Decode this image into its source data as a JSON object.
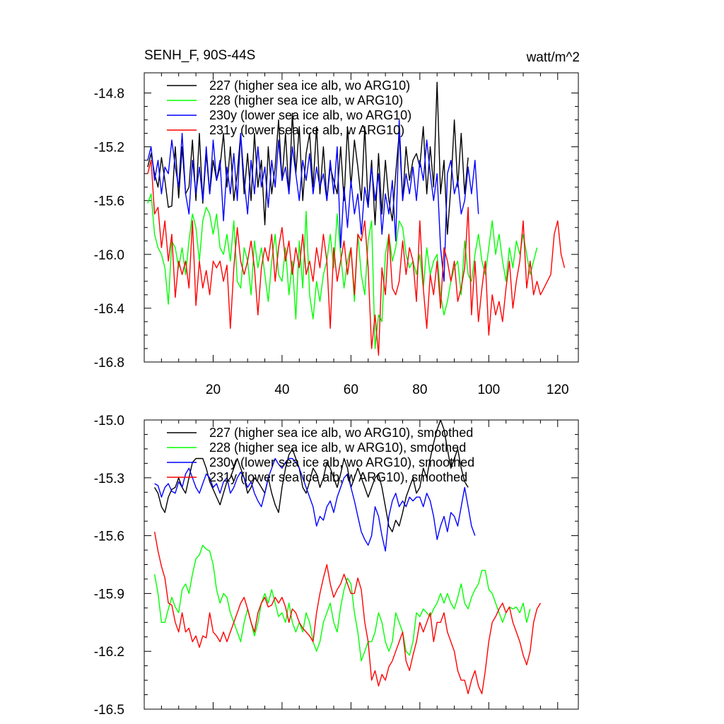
{
  "chart_data": [
    {
      "type": "line",
      "title": "SENH_F, 90S-44S",
      "units": "watt/m^2",
      "ylim": [
        -16.8,
        -14.65
      ],
      "xlim": [
        0,
        126
      ],
      "yticks": [
        "-14.8",
        "-15.2",
        "-15.6",
        "-16.0",
        "-16.4",
        "-16.8"
      ],
      "xticks": [
        "20",
        "40",
        "60",
        "80",
        "100",
        "120"
      ],
      "legend_position": "top-left",
      "series": [
        {
          "name": "227 (higher sea ice alb, wo ARG10)",
          "color": "#000000",
          "x_start": 1,
          "values": [
            -15.35,
            -15.25,
            -15.4,
            -15.5,
            -15.28,
            -15.45,
            -15.65,
            -15.64,
            -15.2,
            -15.58,
            -15.2,
            -15.55,
            -15.5,
            -15.15,
            -15.6,
            -15.1,
            -15.62,
            -15.25,
            -15.55,
            -15.3,
            -15.45,
            -15.35,
            -15.1,
            -15.5,
            -15.2,
            -15.6,
            -15.4,
            -15.1,
            -15.55,
            -15.25,
            -15.6,
            -15.1,
            -15.5,
            -15.3,
            -15.78,
            -15.2,
            -15.55,
            -15.35,
            -15.0,
            -15.45,
            -15.1,
            -15.55,
            -14.95,
            -15.4,
            -15.05,
            -15.6,
            -15.25,
            -15.1,
            -15.5,
            -15.05,
            -15.55,
            -15.2,
            -15.6,
            -15.35,
            -15.45,
            -15.55,
            -15.2,
            -15.6,
            -15.05,
            -15.5,
            -15.15,
            -15.35,
            -15.6,
            -15.05,
            -15.65,
            -15.3,
            -15.78,
            -15.25,
            -15.7,
            -15.3,
            -15.6,
            -15.75,
            -15.4,
            -15.1,
            -15.6,
            -15.2,
            -15.45,
            -15.3,
            -15.25,
            -15.35,
            -15.05,
            -15.55,
            -15.2,
            -15.5,
            -14.72,
            -15.55,
            -15.3,
            -15.85,
            -15.5,
            -15.0,
            -15.5,
            -15.1,
            -15.55,
            -15.28
          ]
        },
        {
          "name": "228 (higher sea ice alb, w ARG10)",
          "color": "#00ff00",
          "x_start": 1,
          "values": [
            -15.62,
            -15.55,
            -15.85,
            -15.95,
            -16.0,
            -16.1,
            -16.37,
            -15.9,
            -15.95,
            -16.1,
            -15.95,
            -16.15,
            -15.9,
            -15.7,
            -15.8,
            -16.05,
            -15.75,
            -15.65,
            -15.7,
            -15.85,
            -15.7,
            -15.95,
            -16.0,
            -15.85,
            -16.05,
            -15.75,
            -16.2,
            -16.25,
            -15.95,
            -16.05,
            -16.3,
            -15.9,
            -16.1,
            -15.95,
            -16.15,
            -16.35,
            -16.05,
            -15.85,
            -16.15,
            -16.2,
            -15.95,
            -16.3,
            -16.05,
            -16.48,
            -15.9,
            -16.25,
            -15.68,
            -16.3,
            -16.48,
            -16.2,
            -16.35,
            -16.15,
            -16.05,
            -15.85,
            -16.1,
            -15.7,
            -16.0,
            -16.25,
            -16.05,
            -15.95,
            -16.35,
            -15.85,
            -16.15,
            -16.3,
            -15.9,
            -15.75,
            -16.7,
            -16.45,
            -16.5,
            -16.0,
            -15.85,
            -16.05,
            -15.95,
            -15.75,
            -15.8,
            -16.0,
            -16.1,
            -16.05,
            -16.15,
            -16.0,
            -16.25,
            -15.95,
            -16.15,
            -16.05,
            -16.0,
            -16.3,
            -16.45,
            -16.35,
            -16.2,
            -16.1,
            -16.05,
            -16.3,
            -15.9,
            -16.15,
            -16.2,
            -16.0,
            -15.85,
            -16.05,
            -16.15,
            -15.95,
            -15.75,
            -16.0,
            -15.85,
            -16.05,
            -16.2,
            -15.95,
            -16.1,
            -15.9,
            -16.0,
            -15.85,
            -16.0,
            -16.15,
            -16.05,
            -15.95
          ]
        },
        {
          "name": "230y (lower sea ice alb, wo ARG10)",
          "color": "#0000ff",
          "x_start": 1,
          "values": [
            -15.3,
            -15.2,
            -15.45,
            -15.3,
            -15.55,
            -15.35,
            -15.4,
            -15.15,
            -15.35,
            -15.5,
            -15.1,
            -15.55,
            -15.7,
            -15.3,
            -15.55,
            -15.35,
            -15.6,
            -15.2,
            -15.55,
            -15.15,
            -15.45,
            -15.3,
            -15.75,
            -15.35,
            -15.55,
            -15.25,
            -15.6,
            -15.1,
            -15.45,
            -15.7,
            -15.3,
            -15.55,
            -15.2,
            -15.5,
            -15.35,
            -15.65,
            -15.3,
            -15.5,
            -15.15,
            -15.45,
            -15.35,
            -15.55,
            -15.2,
            -15.4,
            -15.6,
            -15.3,
            -15.45,
            -15.25,
            -15.55,
            -15.35,
            -15.5,
            -15.4,
            -15.6,
            -15.3,
            -15.55,
            -15.2,
            -15.95,
            -15.5,
            -15.8,
            -15.45,
            -15.7,
            -15.55,
            -15.85,
            -15.5,
            -15.65,
            -15.35,
            -15.6,
            -15.4,
            -15.85,
            -15.55,
            -15.7,
            -15.45,
            -15.9,
            -15.0,
            -15.6,
            -15.4,
            -15.55,
            -15.35,
            -15.6,
            -15.3,
            -15.45,
            -15.15,
            -15.4,
            -15.6,
            -15.4,
            -15.95,
            -16.2,
            -15.4,
            -15.3,
            -15.55,
            -15.45,
            -15.7,
            -15.6,
            -15.35,
            -15.55,
            -15.3,
            -15.7
          ]
        },
        {
          "name": "231y (lower sea ice alb, w ARG10)",
          "color": "#ff0000",
          "x_start": 1,
          "values": [
            -15.4,
            -15.3,
            -15.7,
            -15.65,
            -15.95,
            -15.75,
            -16.05,
            -15.85,
            -16.32,
            -16.05,
            -16.15,
            -16.05,
            -16.25,
            -15.75,
            -16.38,
            -16.05,
            -16.25,
            -16.12,
            -16.3,
            -16.05,
            -16.1,
            -16.05,
            -16.2,
            -16.08,
            -16.55,
            -16.1,
            -15.8,
            -16.05,
            -16.15,
            -16.05,
            -15.9,
            -16.1,
            -16.45,
            -16.1,
            -15.95,
            -16.05,
            -15.85,
            -16.2,
            -15.95,
            -15.8,
            -16.05,
            -15.9,
            -16.15,
            -15.95,
            -16.1,
            -15.85,
            -16.15,
            -16.05,
            -16.2,
            -15.95,
            -16.1,
            -15.85,
            -16.05,
            -16.55,
            -15.95,
            -16.2,
            -16.05,
            -15.9,
            -16.15,
            -15.95,
            -16.3,
            -15.85,
            -15.9,
            -15.75,
            -16.1,
            -16.7,
            -16.45,
            -16.75,
            -16.1,
            -16.3,
            -15.85,
            -16.25,
            -16.3,
            -16.2,
            -15.9,
            -16.15,
            -15.95,
            -16.05,
            -16.35,
            -15.75,
            -16.25,
            -16.55,
            -16.15,
            -16.3,
            -16.05,
            -16.4,
            -15.95,
            -16.05,
            -16.2,
            -16.05,
            -16.35,
            -16.25,
            -16.1,
            -15.65,
            -16.45,
            -16.05,
            -16.5,
            -16.25,
            -16.05,
            -16.6,
            -16.3,
            -16.45,
            -16.35,
            -16.5,
            -16.25,
            -16.05,
            -16.4,
            -16.2,
            -16.05,
            -15.75,
            -16.25,
            -16.05,
            -16.3,
            -16.2,
            -16.3,
            -16.25,
            -16.2,
            -16.15,
            -15.85,
            -15.75,
            -16.0,
            -16.1
          ]
        }
      ]
    },
    {
      "type": "line",
      "title": "",
      "units": "",
      "ylim": [
        -16.5,
        -15.0
      ],
      "xlim": [
        0,
        126
      ],
      "yticks": [
        "-15.0",
        "-15.3",
        "-15.6",
        "-15.9",
        "-16.2",
        "-16.5"
      ],
      "xticks": [],
      "legend_position": "top-left",
      "series": [
        {
          "name": "227 (higher sea ice alb, wo ARG10), smoothed",
          "color": "#000000",
          "x_start": 3,
          "values": [
            -15.35,
            -15.38,
            -15.45,
            -15.48,
            -15.4,
            -15.36,
            -15.35,
            -15.3,
            -15.35,
            -15.38,
            -15.3,
            -15.22,
            -15.2,
            -15.2,
            -15.2,
            -15.25,
            -15.32,
            -15.36,
            -15.4,
            -15.44,
            -15.38,
            -15.32,
            -15.3,
            -15.25,
            -15.2,
            -15.25,
            -15.3,
            -15.38,
            -15.35,
            -15.3,
            -15.32,
            -15.35,
            -15.38,
            -15.3,
            -15.38,
            -15.44,
            -15.48,
            -15.35,
            -15.25,
            -15.18,
            -15.15,
            -15.2,
            -15.25,
            -15.35,
            -15.38,
            -15.32,
            -15.25,
            -15.28,
            -15.35,
            -15.3,
            -15.22,
            -15.25,
            -15.3,
            -15.35,
            -15.28,
            -15.2,
            -15.25,
            -15.35,
            -15.3,
            -15.25,
            -15.3,
            -15.35,
            -15.4,
            -15.35,
            -15.3,
            -15.28,
            -15.35,
            -15.45,
            -15.55,
            -15.58,
            -15.52,
            -15.55,
            -15.48,
            -15.4,
            -15.35,
            -15.3,
            -15.38,
            -15.35,
            -15.25,
            -15.3,
            -15.2,
            -15.12,
            -15.05,
            -15.0,
            -15.05,
            -15.15,
            -15.25,
            -15.2,
            -15.15,
            -15.25,
            -15.32,
            -15.35
          ]
        },
        {
          "name": "228 (higher sea ice alb, w ARG10), smoothed",
          "color": "#00ff00",
          "x_start": 3,
          "values": [
            -15.8,
            -15.9,
            -16.05,
            -16.05,
            -15.98,
            -15.92,
            -15.97,
            -16.0,
            -15.88,
            -15.85,
            -15.9,
            -15.8,
            -15.72,
            -15.7,
            -15.65,
            -15.67,
            -15.68,
            -15.75,
            -15.88,
            -15.95,
            -15.9,
            -15.92,
            -16.0,
            -16.05,
            -16.1,
            -16.15,
            -16.05,
            -15.98,
            -16.05,
            -16.12,
            -16.05,
            -15.95,
            -15.9,
            -15.95,
            -15.88,
            -15.95,
            -16.02,
            -16.0,
            -16.05,
            -15.95,
            -16.05,
            -16.1,
            -16.05,
            -16.1,
            -16.0,
            -16.05,
            -16.15,
            -16.2,
            -16.15,
            -16.05,
            -16.0,
            -15.95,
            -16.05,
            -16.1,
            -15.97,
            -15.88,
            -15.82,
            -15.85,
            -16.0,
            -16.1,
            -16.25,
            -16.2,
            -16.15,
            -16.15,
            -16.1,
            -16.0,
            -16.05,
            -16.15,
            -16.2,
            -16.15,
            -16.0,
            -16.05,
            -16.1,
            -16.2,
            -16.22,
            -16.15,
            -16.0,
            -16.02,
            -15.98,
            -16.0,
            -16.02,
            -15.98,
            -15.95,
            -15.9,
            -15.95,
            -15.9,
            -15.95,
            -15.98,
            -15.92,
            -15.85,
            -15.95,
            -15.98,
            -15.92,
            -15.88,
            -15.85,
            -15.78,
            -15.78,
            -15.88,
            -15.9,
            -15.95,
            -16.0,
            -16.05,
            -16.0,
            -15.97,
            -15.98,
            -15.97,
            -16.0,
            -15.95,
            -16.05,
            -15.98
          ]
        },
        {
          "name": "230y (lower sea ice alb, wo ARG10), smoothed",
          "color": "#0000ff",
          "x_start": 3,
          "values": [
            -15.33,
            -15.34,
            -15.4,
            -15.35,
            -15.33,
            -15.37,
            -15.38,
            -15.32,
            -15.35,
            -15.28,
            -15.25,
            -15.3,
            -15.35,
            -15.38,
            -15.33,
            -15.28,
            -15.3,
            -15.35,
            -15.33,
            -15.38,
            -15.32,
            -15.3,
            -15.38,
            -15.35,
            -15.3,
            -15.27,
            -15.3,
            -15.35,
            -15.32,
            -15.38,
            -15.42,
            -15.45,
            -15.38,
            -15.3,
            -15.25,
            -15.2,
            -15.23,
            -15.25,
            -15.22,
            -15.2,
            -15.2,
            -15.22,
            -15.25,
            -15.3,
            -15.35,
            -15.4,
            -15.45,
            -15.55,
            -15.5,
            -15.52,
            -15.45,
            -15.42,
            -15.48,
            -15.4,
            -15.35,
            -15.3,
            -15.28,
            -15.35,
            -15.42,
            -15.5,
            -15.58,
            -15.62,
            -15.65,
            -15.6,
            -15.45,
            -15.5,
            -15.6,
            -15.68,
            -15.5,
            -15.42,
            -15.38,
            -15.45,
            -15.42,
            -15.45,
            -15.4,
            -15.42,
            -15.4,
            -15.4,
            -15.45,
            -15.38,
            -15.42,
            -15.5,
            -15.62,
            -15.55,
            -15.5,
            -15.58,
            -15.48,
            -15.5,
            -15.55,
            -15.45,
            -15.35,
            -15.45,
            -15.55,
            -15.6
          ]
        },
        {
          "name": "231y (lower sea ice alb, w ARG10), smoothed",
          "color": "#ff0000",
          "x_start": 3,
          "values": [
            -15.58,
            -15.68,
            -15.76,
            -15.82,
            -15.95,
            -15.96,
            -16.05,
            -16.1,
            -16.0,
            -16.1,
            -16.08,
            -16.15,
            -16.12,
            -16.18,
            -16.12,
            -16.13,
            -16.0,
            -16.1,
            -16.12,
            -16.15,
            -16.1,
            -16.15,
            -16.1,
            -16.05,
            -16.0,
            -15.95,
            -15.92,
            -15.98,
            -16.05,
            -16.1,
            -16.0,
            -15.95,
            -15.92,
            -15.97,
            -15.96,
            -15.92,
            -15.95,
            -15.92,
            -15.97,
            -16.05,
            -15.98,
            -16.0,
            -16.05,
            -16.08,
            -16.1,
            -16.12,
            -16.15,
            -16.0,
            -15.9,
            -15.82,
            -15.75,
            -15.85,
            -15.92,
            -15.88,
            -15.85,
            -15.8,
            -15.85,
            -15.9,
            -15.9,
            -15.82,
            -15.88,
            -16.05,
            -16.15,
            -16.35,
            -16.3,
            -16.38,
            -16.32,
            -16.35,
            -16.28,
            -16.25,
            -16.2,
            -16.15,
            -16.1,
            -16.25,
            -16.3,
            -16.22,
            -16.15,
            -16.05,
            -16.1,
            -16.05,
            -16.0,
            -16.15,
            -16.05,
            -16.05,
            -16.0,
            -16.1,
            -16.15,
            -16.2,
            -16.3,
            -16.35,
            -16.35,
            -16.42,
            -16.35,
            -16.3,
            -16.38,
            -16.42,
            -16.3,
            -16.15,
            -16.05,
            -16.02,
            -15.98,
            -15.95,
            -16.0,
            -15.97,
            -16.05,
            -16.1,
            -16.15,
            -16.22,
            -16.27,
            -16.2,
            -16.05,
            -15.98,
            -15.95
          ]
        }
      ]
    }
  ]
}
